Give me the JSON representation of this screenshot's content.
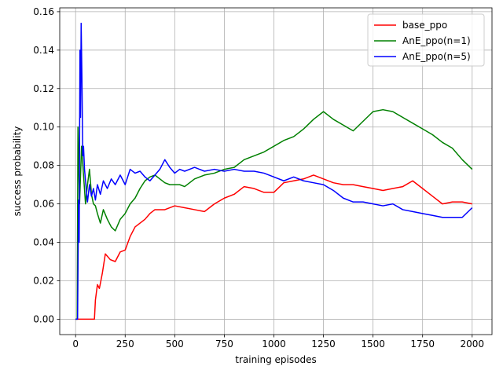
{
  "chart_data": {
    "type": "line",
    "xlabel": "training episodes",
    "ylabel": "success probability",
    "xlim": [
      -80,
      2100
    ],
    "ylim": [
      -0.008,
      0.162
    ],
    "xticks": [
      0,
      250,
      500,
      750,
      1000,
      1250,
      1500,
      1750,
      2000
    ],
    "yticks": [
      0.0,
      0.02,
      0.04,
      0.06,
      0.08,
      0.1,
      0.12,
      0.14,
      0.16
    ],
    "xtick_labels": [
      "0",
      "250",
      "500",
      "750",
      "1000",
      "1250",
      "1500",
      "1750",
      "2000"
    ],
    "ytick_labels": [
      "0.00",
      "0.02",
      "0.04",
      "0.06",
      "0.08",
      "0.10",
      "0.12",
      "0.14",
      "0.16"
    ],
    "grid": true,
    "legend_position": "top-right",
    "series": [
      {
        "name": "base_ppo",
        "color": "#ff0000",
        "x": [
          0,
          50,
          95,
          100,
          110,
          120,
          135,
          150,
          175,
          200,
          225,
          250,
          275,
          300,
          325,
          350,
          375,
          400,
          450,
          500,
          550,
          600,
          650,
          700,
          750,
          800,
          850,
          900,
          950,
          1000,
          1050,
          1100,
          1150,
          1200,
          1250,
          1300,
          1350,
          1400,
          1450,
          1500,
          1550,
          1600,
          1650,
          1700,
          1750,
          1800,
          1850,
          1900,
          1950,
          2000
        ],
        "y": [
          0.0,
          0.0,
          0.0,
          0.01,
          0.018,
          0.016,
          0.024,
          0.034,
          0.031,
          0.03,
          0.035,
          0.036,
          0.043,
          0.048,
          0.05,
          0.052,
          0.055,
          0.057,
          0.057,
          0.059,
          0.058,
          0.057,
          0.056,
          0.06,
          0.063,
          0.065,
          0.069,
          0.068,
          0.066,
          0.066,
          0.071,
          0.072,
          0.073,
          0.075,
          0.073,
          0.071,
          0.07,
          0.07,
          0.069,
          0.068,
          0.067,
          0.068,
          0.069,
          0.072,
          0.068,
          0.064,
          0.06,
          0.061,
          0.061,
          0.06
        ]
      },
      {
        "name": "AnE_ppo(n=1)",
        "color": "#008000",
        "x": [
          0,
          8,
          12,
          20,
          30,
          40,
          50,
          60,
          70,
          80,
          90,
          100,
          110,
          125,
          140,
          160,
          180,
          200,
          225,
          250,
          275,
          300,
          325,
          350,
          375,
          400,
          425,
          450,
          475,
          500,
          525,
          550,
          575,
          600,
          650,
          700,
          750,
          800,
          850,
          900,
          950,
          1000,
          1050,
          1100,
          1150,
          1200,
          1250,
          1300,
          1350,
          1400,
          1450,
          1500,
          1550,
          1600,
          1650,
          1700,
          1750,
          1800,
          1850,
          1900,
          1950,
          2000
        ],
        "y": [
          0.0,
          0.0,
          0.1,
          0.06,
          0.09,
          0.075,
          0.06,
          0.07,
          0.078,
          0.065,
          0.06,
          0.059,
          0.055,
          0.05,
          0.057,
          0.052,
          0.048,
          0.046,
          0.052,
          0.055,
          0.06,
          0.063,
          0.068,
          0.072,
          0.074,
          0.075,
          0.073,
          0.071,
          0.07,
          0.07,
          0.07,
          0.069,
          0.071,
          0.073,
          0.075,
          0.076,
          0.078,
          0.079,
          0.083,
          0.085,
          0.087,
          0.09,
          0.093,
          0.095,
          0.099,
          0.104,
          0.108,
          0.104,
          0.101,
          0.098,
          0.103,
          0.108,
          0.109,
          0.108,
          0.105,
          0.102,
          0.099,
          0.096,
          0.092,
          0.089,
          0.083,
          0.078
        ]
      },
      {
        "name": "AnE_ppo(n=5)",
        "color": "#0000ff",
        "x": [
          0,
          10,
          15,
          18,
          22,
          25,
          28,
          32,
          36,
          40,
          45,
          50,
          55,
          60,
          70,
          80,
          90,
          100,
          110,
          125,
          140,
          160,
          180,
          200,
          225,
          250,
          275,
          300,
          325,
          350,
          375,
          400,
          425,
          450,
          475,
          500,
          525,
          550,
          575,
          600,
          650,
          700,
          750,
          800,
          850,
          900,
          950,
          1000,
          1050,
          1100,
          1150,
          1200,
          1250,
          1300,
          1350,
          1400,
          1450,
          1500,
          1550,
          1600,
          1650,
          1700,
          1750,
          1800,
          1850,
          1900,
          1950,
          2000
        ],
        "y": [
          0.0,
          0.0,
          0.062,
          0.04,
          0.14,
          0.105,
          0.154,
          0.125,
          0.085,
          0.09,
          0.078,
          0.072,
          0.066,
          0.061,
          0.07,
          0.064,
          0.068,
          0.062,
          0.07,
          0.065,
          0.072,
          0.068,
          0.073,
          0.07,
          0.075,
          0.07,
          0.078,
          0.076,
          0.077,
          0.074,
          0.072,
          0.075,
          0.078,
          0.083,
          0.079,
          0.076,
          0.078,
          0.077,
          0.078,
          0.079,
          0.077,
          0.078,
          0.077,
          0.078,
          0.077,
          0.077,
          0.076,
          0.074,
          0.072,
          0.074,
          0.072,
          0.071,
          0.07,
          0.067,
          0.063,
          0.061,
          0.061,
          0.06,
          0.059,
          0.06,
          0.057,
          0.056,
          0.055,
          0.054,
          0.053,
          0.053,
          0.053,
          0.058
        ]
      }
    ]
  }
}
